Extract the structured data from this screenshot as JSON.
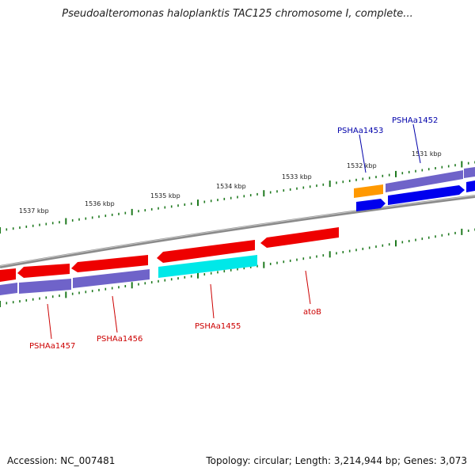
{
  "title": "Pseudoalteromonas haloplanktis TAC125 chromosome I, complete...",
  "footer": {
    "accession": "Accession: NC_007481",
    "summary": "Topology: circular; Length: 3,214,944 bp; Genes: 3,073"
  },
  "colors": {
    "backbone": "#8a8a8a",
    "tick": "#1f7a1f",
    "gene_red": "#ee0000",
    "gene_purple": "#6f63c9",
    "gene_blue": "#0000ee",
    "gene_cyan": "#00e8e8",
    "gene_orange": "#ff9900",
    "label_red": "#cc0000",
    "label_blue": "#0000aa"
  },
  "scale": {
    "unit": "kbp",
    "labels": [
      "1531 kbp",
      "1532 kbp",
      "1533 kbp",
      "1534 kbp",
      "1535 kbp",
      "1536 kbp",
      "1537 kbp"
    ]
  },
  "gene_labels": {
    "top": [
      "PSHAa1453",
      "PSHAa1452"
    ],
    "bottom": [
      "PSHAa1457",
      "PSHAa1456",
      "PSHAa1455",
      "atoB"
    ]
  }
}
